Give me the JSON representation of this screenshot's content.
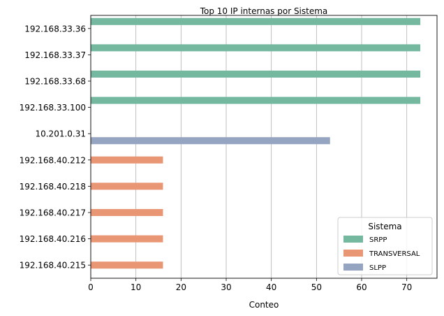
{
  "chart_data": {
    "type": "bar",
    "orientation": "horizontal",
    "title": "Top 10 IP internas por Sistema",
    "xlabel": "Conteo",
    "ylabel": "",
    "xlim": [
      0,
      76.7
    ],
    "xticks": [
      0,
      10,
      20,
      30,
      40,
      50,
      60,
      70
    ],
    "grid": "vertical",
    "categories": [
      "192.168.33.36",
      "192.168.33.37",
      "192.168.33.68",
      "192.168.33.100",
      "10.201.0.31",
      "192.168.40.212",
      "192.168.40.218",
      "192.168.40.217",
      "192.168.40.216",
      "192.168.40.215"
    ],
    "series": [
      {
        "name": "SRPP",
        "color": "#74b8a0",
        "values": [
          73,
          73,
          73,
          73,
          null,
          null,
          null,
          null,
          null,
          null
        ]
      },
      {
        "name": "TRANSVERSAL",
        "color": "#e99675",
        "values": [
          null,
          null,
          null,
          null,
          null,
          16,
          16,
          16,
          16,
          16
        ]
      },
      {
        "name": "SLPP",
        "color": "#95a4c1",
        "values": [
          null,
          null,
          null,
          null,
          53,
          null,
          null,
          null,
          null,
          null
        ]
      }
    ],
    "legend": {
      "title": "Sistema",
      "placement": "lower-right"
    }
  }
}
